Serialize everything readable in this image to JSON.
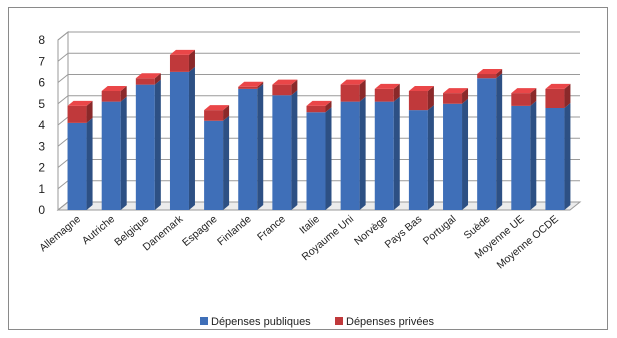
{
  "chart_data": {
    "type": "bar",
    "stacked": true,
    "three_d": true,
    "categories": [
      "Allemagne",
      "Autriche",
      "Belgique",
      "Danemark",
      "Espagne",
      "Finlande",
      "France",
      "Italie",
      "Royaume Uni",
      "Norvège",
      "Pays Bas",
      "Portugal",
      "Suède",
      "Moyenne UE",
      "Moyenne OCDE"
    ],
    "series": [
      {
        "name": "Dépenses publiques",
        "color": "#3f6fb8",
        "values": [
          4.1,
          5.1,
          5.9,
          6.5,
          4.2,
          5.7,
          5.4,
          4.6,
          5.1,
          5.1,
          4.7,
          5.0,
          6.2,
          4.9,
          4.8
        ]
      },
      {
        "name": "Dépenses privées",
        "color": "#c0393b",
        "values": [
          0.8,
          0.5,
          0.3,
          0.8,
          0.5,
          0.1,
          0.5,
          0.3,
          0.8,
          0.6,
          0.9,
          0.5,
          0.2,
          0.6,
          0.9
        ]
      }
    ],
    "ylim": [
      0,
      8
    ],
    "yticks": [
      "0",
      "1",
      "2",
      "3",
      "4",
      "5",
      "6",
      "7",
      "8"
    ],
    "grid": true,
    "legend": "bottom"
  }
}
